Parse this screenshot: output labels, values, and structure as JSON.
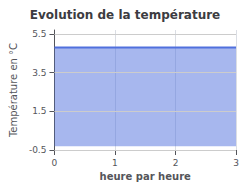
{
  "chart_data": {
    "type": "area",
    "title": "Evolution de la température",
    "xlabel": "heure par heure",
    "ylabel": "Température en °C",
    "x": [
      0,
      3
    ],
    "values": [
      4.8,
      4.8
    ],
    "fill_bottom": -0.3,
    "xlim": [
      0,
      3
    ],
    "ylim": [
      -0.5,
      5.7
    ],
    "xticks": [
      0,
      1,
      2,
      3
    ],
    "yticks": [
      -0.5,
      1.5,
      3.5,
      5.5
    ],
    "grid": true
  }
}
